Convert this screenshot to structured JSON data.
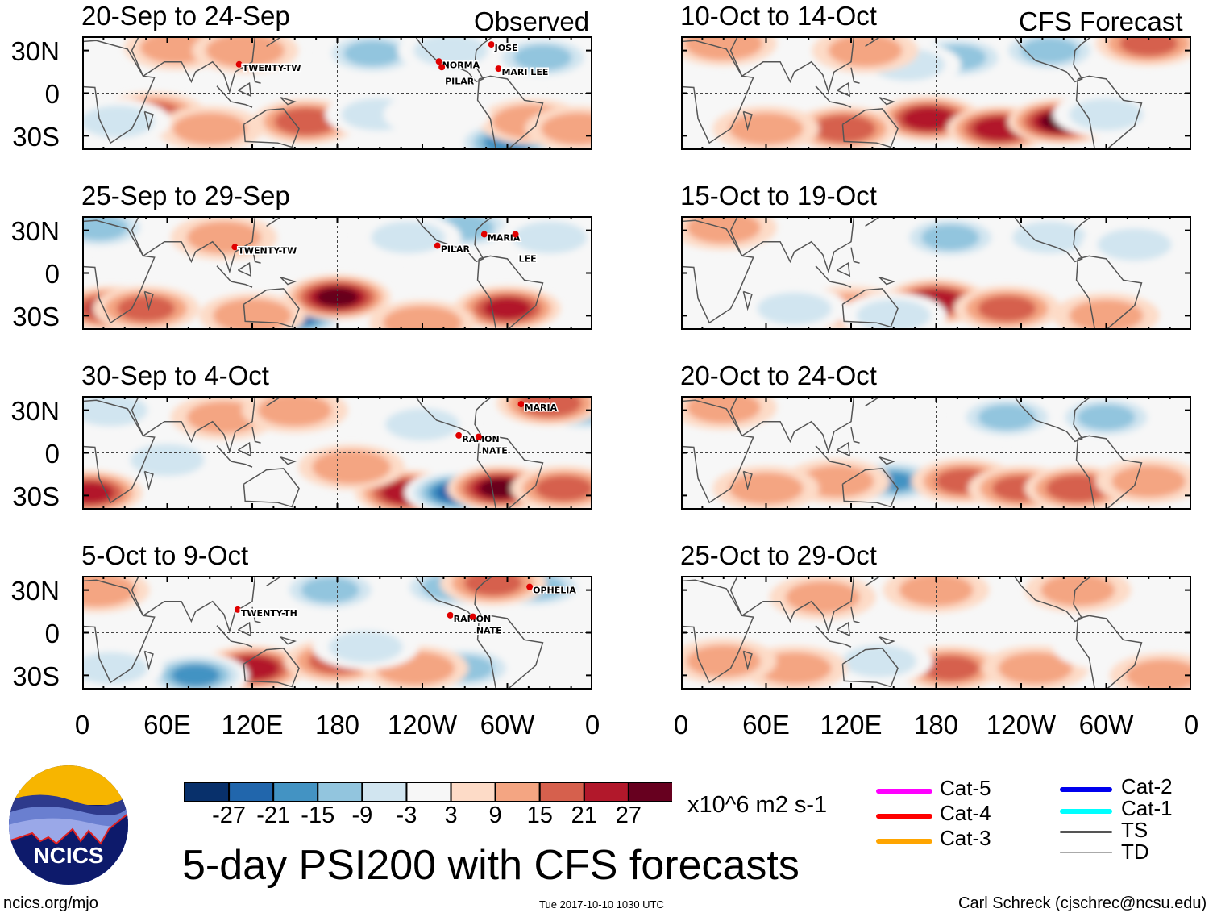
{
  "headers": {
    "left": "Observed",
    "right": "CFS Forecast"
  },
  "lat_labels": [
    "30N",
    "0",
    "30S"
  ],
  "lon_labels": [
    "0",
    "60E",
    "120E",
    "180",
    "120W",
    "60W",
    "0"
  ],
  "panels": [
    {
      "title": "20-Sep to 24-Sep",
      "column": "left",
      "anomalies": [
        [
          50,
          -15,
          15
        ],
        [
          158,
          -20,
          18
        ],
        [
          90,
          -25,
          9
        ],
        [
          209,
          -15,
          -9
        ],
        [
          300,
          -35,
          -21
        ],
        [
          317,
          -20,
          12
        ],
        [
          67,
          32,
          9
        ],
        [
          115,
          30,
          12
        ],
        [
          205,
          28,
          -15
        ],
        [
          260,
          30,
          -9
        ],
        [
          325,
          25,
          -15
        ],
        [
          25,
          -20,
          -9
        ],
        [
          250,
          -15,
          -3
        ],
        [
          350,
          -25,
          9
        ]
      ],
      "storms": [
        {
          "name": "TWENTY-TW",
          "lon": 113,
          "lat": 18
        },
        {
          "name": "NORMA",
          "lon": 254,
          "lat": 20
        },
        {
          "name": "PILAR",
          "lon": 256,
          "lat": 16
        },
        {
          "name": "JOSE",
          "lon": 291,
          "lat": 32
        },
        {
          "name": "MARI LEE",
          "lon": 296,
          "lat": 15
        }
      ]
    },
    {
      "title": "25-Sep to 29-Sep",
      "column": "left",
      "anomalies": [
        [
          12,
          32,
          -15
        ],
        [
          20,
          -25,
          21
        ],
        [
          45,
          -25,
          15
        ],
        [
          150,
          -30,
          -27
        ],
        [
          180,
          -17,
          27
        ],
        [
          120,
          -30,
          12
        ],
        [
          300,
          -25,
          21
        ],
        [
          240,
          -35,
          12
        ],
        [
          270,
          32,
          -15
        ],
        [
          330,
          25,
          -9
        ],
        [
          100,
          25,
          9
        ],
        [
          230,
          25,
          -9
        ]
      ],
      "storms": [
        {
          "name": "TWENTY-TW",
          "lon": 110,
          "lat": 16
        },
        {
          "name": "PILAR",
          "lon": 253,
          "lat": 17
        },
        {
          "name": "MARIA",
          "lon": 286,
          "lat": 25
        },
        {
          "name": "LEE",
          "lon": 308,
          "lat": 25
        }
      ]
    },
    {
      "title": "30-Sep to 4-Oct",
      "column": "left",
      "anomalies": [
        [
          5,
          -28,
          21
        ],
        [
          230,
          -28,
          24
        ],
        [
          265,
          -28,
          -27
        ],
        [
          295,
          -25,
          27
        ],
        [
          340,
          -25,
          15
        ],
        [
          355,
          30,
          -15
        ],
        [
          330,
          35,
          18
        ],
        [
          240,
          20,
          -9
        ],
        [
          60,
          -5,
          -9
        ],
        [
          100,
          25,
          9
        ],
        [
          150,
          30,
          9
        ],
        [
          190,
          -10,
          12
        ],
        [
          20,
          30,
          -9
        ]
      ],
      "storms": [
        {
          "name": "MARIA",
          "lon": 312,
          "lat": 32
        },
        {
          "name": "RAMON",
          "lon": 268,
          "lat": 10
        },
        {
          "name": "NATE",
          "lon": 282,
          "lat": 9
        }
      ]
    },
    {
      "title": "5-Oct to 9-Oct",
      "column": "left",
      "anomalies": [
        [
          120,
          -25,
          24
        ],
        [
          80,
          -30,
          -21
        ],
        [
          180,
          -20,
          15
        ],
        [
          270,
          -25,
          -15
        ],
        [
          235,
          -25,
          12
        ],
        [
          175,
          30,
          -15
        ],
        [
          260,
          32,
          -15
        ],
        [
          320,
          32,
          -15
        ],
        [
          20,
          -25,
          -9
        ],
        [
          200,
          -10,
          -9
        ],
        [
          290,
          35,
          15
        ],
        [
          10,
          30,
          12
        ]
      ],
      "storms": [
        {
          "name": "TWENTY-TH",
          "lon": 112,
          "lat": 14
        },
        {
          "name": "RAMON",
          "lon": 262,
          "lat": 10
        },
        {
          "name": "NATE",
          "lon": 278,
          "lat": 9
        },
        {
          "name": "OPHELIA",
          "lon": 318,
          "lat": 30
        }
      ]
    },
    {
      "title": "10-Oct to 14-Oct",
      "column": "right",
      "anomalies": [
        [
          175,
          -18,
          24
        ],
        [
          225,
          -25,
          24
        ],
        [
          268,
          -20,
          27
        ],
        [
          115,
          -25,
          18
        ],
        [
          60,
          -25,
          9
        ],
        [
          195,
          25,
          -15
        ],
        [
          160,
          20,
          -9
        ],
        [
          260,
          30,
          -15
        ],
        [
          330,
          35,
          15
        ],
        [
          30,
          35,
          12
        ],
        [
          130,
          30,
          9
        ],
        [
          300,
          -15,
          -9
        ]
      ],
      "storms": []
    },
    {
      "title": "15-Oct to 19-Oct",
      "column": "right",
      "anomalies": [
        [
          180,
          -20,
          24
        ],
        [
          230,
          -25,
          15
        ],
        [
          120,
          -25,
          9
        ],
        [
          190,
          25,
          -15
        ],
        [
          150,
          -30,
          -9
        ],
        [
          260,
          25,
          -9
        ],
        [
          320,
          20,
          -9
        ],
        [
          30,
          32,
          9
        ],
        [
          80,
          -25,
          -9
        ],
        [
          300,
          -30,
          9
        ]
      ],
      "storms": []
    },
    {
      "title": "20-Oct to 24-Oct",
      "column": "right",
      "anomalies": [
        [
          150,
          -20,
          -18
        ],
        [
          200,
          -20,
          15
        ],
        [
          240,
          -25,
          15
        ],
        [
          280,
          -25,
          18
        ],
        [
          110,
          -20,
          9
        ],
        [
          230,
          25,
          -15
        ],
        [
          300,
          25,
          -15
        ],
        [
          60,
          -25,
          9
        ],
        [
          30,
          32,
          9
        ],
        [
          330,
          -20,
          9
        ]
      ],
      "storms": []
    },
    {
      "title": "25-Oct to 29-Oct",
      "column": "right",
      "anomalies": [
        [
          190,
          -25,
          15
        ],
        [
          140,
          -20,
          -9
        ],
        [
          250,
          -25,
          9
        ],
        [
          80,
          -25,
          9
        ],
        [
          180,
          30,
          9
        ],
        [
          280,
          30,
          9
        ],
        [
          30,
          -20,
          9
        ],
        [
          300,
          -10,
          -3
        ],
        [
          100,
          25,
          9
        ],
        [
          340,
          -30,
          9
        ]
      ],
      "storms": []
    }
  ],
  "colorbar": {
    "colors": [
      "#08306b",
      "#2166ac",
      "#4393c3",
      "#92c5de",
      "#d1e5f0",
      "#f7f7f7",
      "#fddbc7",
      "#f4a582",
      "#d6604d",
      "#b2182b",
      "#67001f"
    ],
    "levels": [
      -30,
      -27,
      -21,
      -15,
      -9,
      -3,
      3,
      9,
      15,
      21,
      27,
      33
    ],
    "labels": [
      "-27",
      "-21",
      "-15",
      "-9",
      "-3",
      "3",
      "9",
      "15",
      "21",
      "27"
    ],
    "units": "x10^6 m2 s-1"
  },
  "title": "5-day PSI200 with CFS forecasts",
  "legend": [
    {
      "label": "Cat-5",
      "color": "#ff00ff"
    },
    {
      "label": "Cat-4",
      "color": "#ff0000"
    },
    {
      "label": "Cat-3",
      "color": "#ffa500"
    },
    {
      "label": "Cat-2",
      "color": "#0000ee"
    },
    {
      "label": "Cat-1",
      "color": "#00ffff"
    },
    {
      "label": "TS",
      "color": "#555555"
    },
    {
      "label": "TD",
      "color": "#aaaaaa"
    }
  ],
  "logo_text": "NCICS",
  "footer": {
    "url": "ncics.org/mjo",
    "timestamp": "Tue 2017-10-10 1030 UTC",
    "credit": "Carl Schreck (cjschrec@ncsu.edu)"
  }
}
